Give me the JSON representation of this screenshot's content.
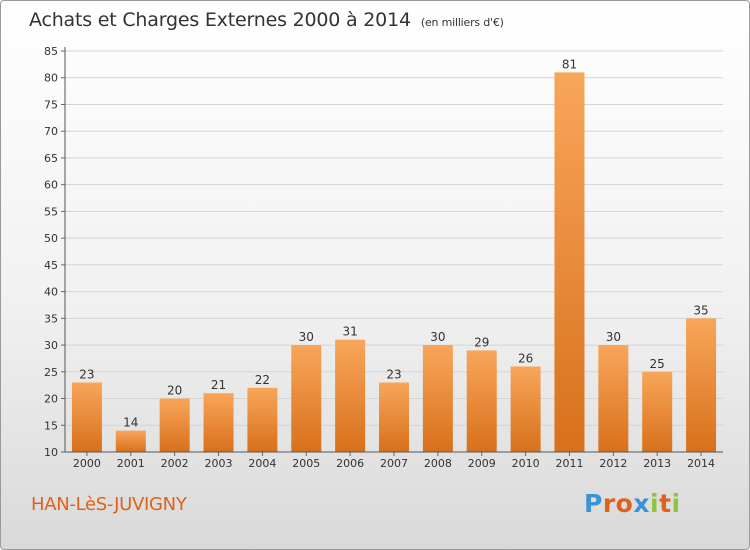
{
  "header": {
    "title": "Achats et Charges Externes 2000 à 2014",
    "unit": "(en milliers d'€)"
  },
  "footer": {
    "town": "HAN-LèS-JUVIGNY",
    "brand": "Proxiti"
  },
  "colors": {
    "bar_light": "#f8a65a",
    "bar_dark": "#d8701b",
    "town": "#e0621a",
    "brand_letters": [
      "#3a93d2",
      "#e0621a",
      "#e0621a",
      "#3a93d2",
      "#8cc63f",
      "#e0621a",
      "#8cc63f"
    ]
  },
  "chart_data": {
    "type": "bar",
    "title": "Achats et Charges Externes 2000 à 2014",
    "subtitle": "(en milliers d'€)",
    "xlabel": "",
    "ylabel": "",
    "categories": [
      "2000",
      "2001",
      "2002",
      "2003",
      "2004",
      "2005",
      "2006",
      "2007",
      "2008",
      "2009",
      "2010",
      "2011",
      "2012",
      "2013",
      "2014"
    ],
    "values": [
      23,
      14,
      20,
      21,
      22,
      30,
      31,
      23,
      30,
      29,
      26,
      81,
      30,
      25,
      35
    ],
    "ylim": [
      10,
      85
    ],
    "yticks": [
      10,
      15,
      20,
      25,
      30,
      35,
      40,
      45,
      50,
      55,
      60,
      65,
      70,
      75,
      80,
      85
    ],
    "grid": true,
    "legend": "none"
  }
}
